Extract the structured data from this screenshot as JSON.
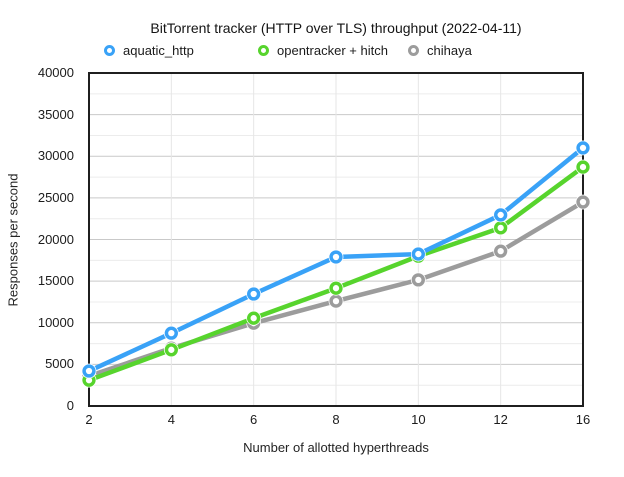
{
  "page": {
    "background": "#ffffff"
  },
  "chart_data": {
    "type": "line",
    "title": "BitTorrent tracker (HTTP over TLS) throughput (2022-04-11)",
    "xlabel": "Number of allotted hyperthreads",
    "ylabel": "Responses per second",
    "x_axis_style": "categorical",
    "categories": [
      2,
      4,
      6,
      8,
      10,
      12,
      16
    ],
    "y_tick_labels": [
      "40000",
      "35000",
      "30000",
      "25000",
      "20000",
      "15000",
      "10000",
      "5000",
      "0"
    ],
    "ylim": [
      0,
      40000
    ],
    "y_major_step": 5000,
    "y_minor_step": 2500,
    "grid": true,
    "legend_position": "top",
    "series": [
      {
        "name": "aquatic_http",
        "color": "#39A2F7",
        "values": [
          4200,
          8750,
          13450,
          17900,
          18250,
          22950,
          31000
        ]
      },
      {
        "name": "opentracker + hitch",
        "color": "#57D42D",
        "values": [
          3100,
          6750,
          10550,
          14150,
          18000,
          21400,
          28700
        ]
      },
      {
        "name": "chihaya",
        "color": "#9C9C9C",
        "values": [
          3600,
          6950,
          9950,
          12600,
          15150,
          18600,
          24500
        ]
      }
    ]
  }
}
